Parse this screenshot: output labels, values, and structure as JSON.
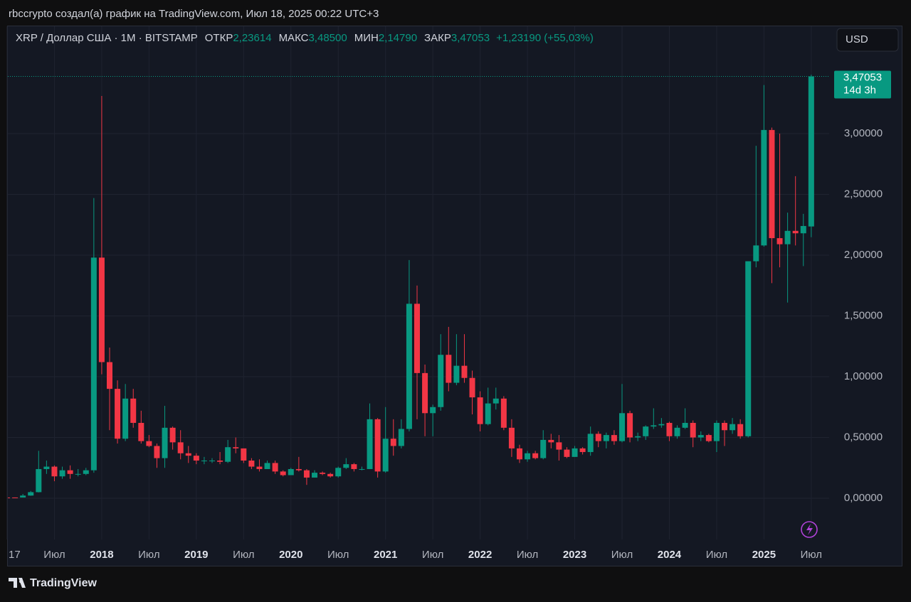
{
  "header": {
    "caption": "rbccrypto создал(а) график на TradingView.com, Июл 18, 2025 00:22 UTC+3"
  },
  "chart_data": {
    "type": "candlestick",
    "title": "XRP / Доллар США · 1M · BITSTAMP",
    "legend_values": [
      {
        "label": "ОТКР",
        "text": "2,23614"
      },
      {
        "label": "МАКС",
        "text": "3,48500"
      },
      {
        "label": "МИН",
        "text": "2,14790"
      },
      {
        "label": "ЗАКР",
        "text": "3,47053"
      }
    ],
    "change": "+1,23190 (+55,03%)",
    "currency": "USD",
    "last_price": {
      "value": 3.47053,
      "label": "3,47053"
    },
    "countdown": "14d 3h",
    "up_color": "#089981",
    "down_color": "#f23645",
    "grid": true,
    "x": [
      "2017-01",
      "2017-02",
      "2017-03",
      "2017-04",
      "2017-05",
      "2017-06",
      "2017-07",
      "2017-08",
      "2017-09",
      "2017-10",
      "2017-11",
      "2017-12",
      "2018-01",
      "2018-02",
      "2018-03",
      "2018-04",
      "2018-05",
      "2018-06",
      "2018-07",
      "2018-08",
      "2018-09",
      "2018-10",
      "2018-11",
      "2018-12",
      "2019-01",
      "2019-02",
      "2019-03",
      "2019-04",
      "2019-05",
      "2019-06",
      "2019-07",
      "2019-08",
      "2019-09",
      "2019-10",
      "2019-11",
      "2019-12",
      "2020-01",
      "2020-02",
      "2020-03",
      "2020-04",
      "2020-05",
      "2020-06",
      "2020-07",
      "2020-08",
      "2020-09",
      "2020-10",
      "2020-11",
      "2020-12",
      "2021-01",
      "2021-02",
      "2021-03",
      "2021-04",
      "2021-05",
      "2021-06",
      "2021-07",
      "2021-08",
      "2021-09",
      "2021-10",
      "2021-11",
      "2021-12",
      "2022-01",
      "2022-02",
      "2022-03",
      "2022-04",
      "2022-05",
      "2022-06",
      "2022-07",
      "2022-08",
      "2022-09",
      "2022-10",
      "2022-11",
      "2022-12",
      "2023-01",
      "2023-02",
      "2023-03",
      "2023-04",
      "2023-05",
      "2023-06",
      "2023-07",
      "2023-08",
      "2023-09",
      "2023-10",
      "2023-11",
      "2023-12",
      "2024-01",
      "2024-02",
      "2024-03",
      "2024-04",
      "2024-05",
      "2024-06",
      "2024-07",
      "2024-08",
      "2024-09",
      "2024-10",
      "2024-11",
      "2024-12",
      "2025-01",
      "2025-02",
      "2025-03",
      "2025-04",
      "2025-05",
      "2025-06",
      "2025-07"
    ],
    "open": [
      0.0065,
      0.0063,
      0.0062,
      0.022,
      0.05,
      0.24,
      0.26,
      0.18,
      0.23,
      0.2,
      0.2,
      0.23,
      1.98,
      1.12,
      0.9,
      0.49,
      0.82,
      0.62,
      0.47,
      0.43,
      0.33,
      0.58,
      0.46,
      0.37,
      0.35,
      0.31,
      0.31,
      0.31,
      0.3,
      0.42,
      0.41,
      0.31,
      0.26,
      0.24,
      0.29,
      0.22,
      0.19,
      0.24,
      0.23,
      0.17,
      0.21,
      0.2,
      0.18,
      0.25,
      0.28,
      0.24,
      0.24,
      0.65,
      0.22,
      0.49,
      0.43,
      0.57,
      1.6,
      1.03,
      0.7,
      0.75,
      1.18,
      0.95,
      1.09,
      0.99,
      0.83,
      0.61,
      0.78,
      0.82,
      0.58,
      0.41,
      0.32,
      0.37,
      0.33,
      0.48,
      0.46,
      0.4,
      0.34,
      0.41,
      0.38,
      0.53,
      0.47,
      0.52,
      0.47,
      0.7,
      0.5,
      0.51,
      0.59,
      0.6,
      0.62,
      0.51,
      0.58,
      0.62,
      0.5,
      0.52,
      0.47,
      0.62,
      0.56,
      0.61,
      0.51,
      1.95,
      2.08,
      3.03,
      2.14,
      2.09,
      2.2,
      2.18,
      2.23614
    ],
    "high": [
      0.007,
      0.0067,
      0.035,
      0.06,
      0.39,
      0.31,
      0.27,
      0.26,
      0.27,
      0.24,
      0.25,
      2.47,
      3.31,
      1.24,
      0.97,
      0.94,
      0.9,
      0.72,
      0.52,
      0.45,
      0.76,
      0.59,
      0.56,
      0.43,
      0.37,
      0.34,
      0.33,
      0.38,
      0.48,
      0.5,
      0.41,
      0.33,
      0.32,
      0.31,
      0.31,
      0.23,
      0.25,
      0.34,
      0.24,
      0.23,
      0.22,
      0.21,
      0.26,
      0.33,
      0.29,
      0.26,
      0.78,
      0.66,
      0.75,
      0.65,
      0.65,
      1.96,
      1.75,
      1.1,
      0.77,
      1.35,
      1.41,
      1.35,
      1.35,
      1.05,
      0.88,
      0.91,
      0.91,
      0.84,
      0.65,
      0.44,
      0.39,
      0.39,
      0.56,
      0.53,
      0.52,
      0.42,
      0.43,
      0.42,
      0.59,
      0.55,
      0.54,
      0.56,
      0.94,
      0.72,
      0.54,
      0.6,
      0.74,
      0.66,
      0.63,
      0.6,
      0.74,
      0.64,
      0.55,
      0.53,
      0.64,
      0.64,
      0.66,
      0.65,
      1.95,
      2.9,
      3.4,
      3.05,
      3.0,
      2.35,
      2.65,
      2.34,
      3.485
    ],
    "low": [
      0.0058,
      0.0056,
      0.006,
      0.02,
      0.048,
      0.2,
      0.14,
      0.16,
      0.16,
      0.18,
      0.19,
      0.21,
      1.02,
      0.56,
      0.45,
      0.47,
      0.58,
      0.45,
      0.42,
      0.25,
      0.25,
      0.4,
      0.32,
      0.29,
      0.28,
      0.28,
      0.29,
      0.28,
      0.29,
      0.37,
      0.29,
      0.24,
      0.22,
      0.24,
      0.2,
      0.18,
      0.19,
      0.22,
      0.11,
      0.17,
      0.19,
      0.17,
      0.17,
      0.24,
      0.22,
      0.23,
      0.24,
      0.17,
      0.21,
      0.35,
      0.41,
      0.55,
      0.65,
      0.51,
      0.51,
      0.72,
      0.88,
      0.93,
      0.95,
      0.69,
      0.55,
      0.6,
      0.73,
      0.56,
      0.34,
      0.29,
      0.3,
      0.32,
      0.32,
      0.41,
      0.31,
      0.33,
      0.34,
      0.36,
      0.35,
      0.42,
      0.41,
      0.44,
      0.46,
      0.46,
      0.47,
      0.48,
      0.57,
      0.58,
      0.47,
      0.49,
      0.57,
      0.42,
      0.47,
      0.46,
      0.38,
      0.43,
      0.53,
      0.49,
      0.5,
      1.9,
      2.07,
      1.77,
      1.9,
      1.61,
      2.08,
      1.91,
      2.1479
    ],
    "close": [
      0.0063,
      0.0062,
      0.022,
      0.05,
      0.24,
      0.26,
      0.18,
      0.23,
      0.2,
      0.2,
      0.23,
      1.98,
      1.12,
      0.9,
      0.49,
      0.82,
      0.62,
      0.47,
      0.43,
      0.33,
      0.58,
      0.46,
      0.37,
      0.35,
      0.31,
      0.31,
      0.31,
      0.3,
      0.42,
      0.41,
      0.31,
      0.26,
      0.24,
      0.29,
      0.22,
      0.19,
      0.24,
      0.23,
      0.17,
      0.21,
      0.2,
      0.18,
      0.25,
      0.28,
      0.24,
      0.24,
      0.65,
      0.22,
      0.49,
      0.43,
      0.57,
      1.6,
      1.03,
      0.7,
      0.75,
      1.18,
      0.95,
      1.09,
      0.99,
      0.83,
      0.61,
      0.78,
      0.82,
      0.58,
      0.41,
      0.32,
      0.37,
      0.33,
      0.48,
      0.46,
      0.4,
      0.34,
      0.41,
      0.38,
      0.53,
      0.47,
      0.52,
      0.47,
      0.7,
      0.5,
      0.51,
      0.59,
      0.6,
      0.61,
      0.51,
      0.58,
      0.62,
      0.5,
      0.52,
      0.47,
      0.62,
      0.56,
      0.61,
      0.51,
      1.95,
      2.08,
      3.03,
      2.14,
      2.09,
      2.2,
      2.18,
      2.24,
      3.47053
    ],
    "xlim": [
      "2017-01",
      "2025-09"
    ],
    "xticks": [
      {
        "value": "2017-01",
        "label": "17"
      },
      {
        "value": "2017-07",
        "label": "Июл"
      },
      {
        "value": "2018-01",
        "label": "2018"
      },
      {
        "value": "2018-07",
        "label": "Июл"
      },
      {
        "value": "2019-01",
        "label": "2019"
      },
      {
        "value": "2019-07",
        "label": "Июл"
      },
      {
        "value": "2020-01",
        "label": "2020"
      },
      {
        "value": "2020-07",
        "label": "Июл"
      },
      {
        "value": "2021-01",
        "label": "2021"
      },
      {
        "value": "2021-07",
        "label": "Июл"
      },
      {
        "value": "2022-01",
        "label": "2022"
      },
      {
        "value": "2022-07",
        "label": "Июл"
      },
      {
        "value": "2023-01",
        "label": "2023"
      },
      {
        "value": "2023-07",
        "label": "Июл"
      },
      {
        "value": "2024-01",
        "label": "2024"
      },
      {
        "value": "2024-07",
        "label": "Июл"
      },
      {
        "value": "2025-01",
        "label": "2025"
      },
      {
        "value": "2025-07",
        "label": "Июл"
      }
    ],
    "ylim": [
      -0.345,
      3.889
    ],
    "yticks": [
      {
        "value": 0,
        "label": "0,00000"
      },
      {
        "value": 0.5,
        "label": "0,50000"
      },
      {
        "value": 1,
        "label": "1,00000"
      },
      {
        "value": 1.5,
        "label": "1,50000"
      },
      {
        "value": 2,
        "label": "2,00000"
      },
      {
        "value": 2.5,
        "label": "2,50000"
      },
      {
        "value": 3,
        "label": "3,00000"
      }
    ]
  },
  "footer": {
    "brand": "TradingView"
  }
}
